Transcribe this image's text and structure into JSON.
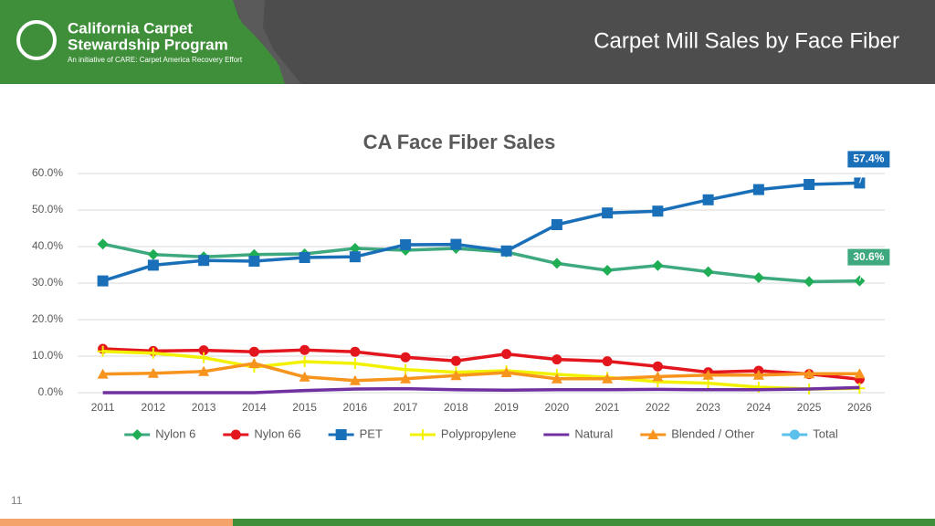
{
  "header": {
    "logo_title": "California Carpet",
    "logo_title_2": "Stewardship Program",
    "logo_subtitle": "An initiative of CARE: Carpet America Recovery Effort",
    "slide_title": "Carpet Mill Sales by Face Fiber"
  },
  "page_number": "11",
  "chart_data": {
    "type": "line",
    "title": "CA Face Fiber Sales",
    "categories": [
      "2011",
      "2012",
      "2013",
      "2014",
      "2015",
      "2016",
      "2017",
      "2018",
      "2019",
      "2020",
      "2021",
      "2022",
      "2023",
      "2024",
      "2025",
      "2026"
    ],
    "ylim": [
      0,
      60
    ],
    "yticks": [
      {
        "value": 0,
        "label": "0.0%"
      },
      {
        "value": 10,
        "label": "10.0%"
      },
      {
        "value": 20,
        "label": "20.0%"
      },
      {
        "value": 30,
        "label": "30.0%"
      },
      {
        "value": 40,
        "label": "40.0%"
      },
      {
        "value": 50,
        "label": "50.0%"
      },
      {
        "value": 60,
        "label": "60.0%"
      }
    ],
    "grid": true,
    "legend": "bottom",
    "series": [
      {
        "name": "Nylon 6",
        "color": "#3ea87f",
        "marker": "diamond",
        "marker_color": "#1fae55",
        "values": [
          40.7,
          37.8,
          37.2,
          37.8,
          38.0,
          39.5,
          39.0,
          39.5,
          38.5,
          35.4,
          33.5,
          34.8,
          33.1,
          31.5,
          30.4,
          30.6
        ],
        "value_labels": [
          null,
          null,
          null,
          null,
          null,
          null,
          null,
          null,
          null,
          null,
          null,
          null,
          null,
          null,
          null,
          "30.6%"
        ]
      },
      {
        "name": "Nylon 66",
        "color": "#e3161d",
        "marker": "circle",
        "marker_color": "#e3161d",
        "values": [
          12.0,
          11.4,
          11.6,
          11.2,
          11.7,
          11.2,
          9.7,
          8.7,
          10.6,
          9.1,
          8.6,
          7.2,
          5.6,
          6.0,
          5.1,
          3.7
        ]
      },
      {
        "name": "PET",
        "color": "#1a6fb9",
        "marker": "square",
        "marker_color": "#1a6fb9",
        "values": [
          30.6,
          34.9,
          36.2,
          36.0,
          37.0,
          37.2,
          40.5,
          40.6,
          38.8,
          46.0,
          49.2,
          49.7,
          52.8,
          55.6,
          57.0,
          57.4
        ],
        "value_labels": [
          null,
          null,
          null,
          null,
          null,
          null,
          null,
          null,
          null,
          null,
          null,
          null,
          null,
          null,
          null,
          "57.4%"
        ]
      },
      {
        "name": "Polypropylene",
        "color": "#f2f200",
        "marker": "plus",
        "marker_color": "#f2f200",
        "values": [
          11.3,
          10.8,
          9.6,
          7.0,
          8.5,
          8.0,
          6.3,
          5.6,
          6.0,
          5.0,
          4.2,
          3.0,
          2.6,
          1.5,
          1.0,
          1.2
        ]
      },
      {
        "name": "Natural",
        "color": "#7030a0",
        "marker": "none",
        "marker_color": "#7030a0",
        "values": [
          0,
          0,
          0,
          0,
          0.6,
          1.0,
          1.1,
          0.8,
          0.7,
          0.8,
          0.8,
          0.9,
          0.8,
          0.8,
          1.0,
          1.4
        ]
      },
      {
        "name": "Blended / Other",
        "color": "#f7941d",
        "marker": "triangle",
        "marker_color": "#f7941d",
        "values": [
          5.1,
          5.3,
          5.8,
          8.0,
          4.3,
          3.3,
          3.8,
          4.7,
          5.5,
          3.8,
          3.8,
          4.4,
          4.8,
          4.8,
          5.2,
          5.2
        ]
      },
      {
        "name": "Total",
        "color": "#5bc0eb",
        "marker": "circle",
        "marker_color": "#5bc0eb",
        "values": [
          null,
          null,
          null,
          null,
          null,
          null,
          null,
          null,
          null,
          null,
          null,
          null,
          null,
          null,
          null,
          null
        ]
      }
    ]
  }
}
